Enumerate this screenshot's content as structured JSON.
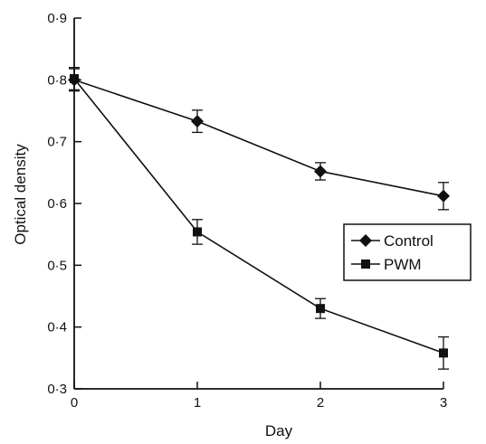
{
  "chart_data": {
    "type": "line",
    "xlabel": "Day",
    "ylabel": "Optical density",
    "xlim": [
      0,
      3
    ],
    "ylim": [
      0.3,
      0.9
    ],
    "x_ticks": [
      "0",
      "1",
      "2",
      "3"
    ],
    "y_ticks": [
      "0·3",
      "0·4",
      "0·5",
      "0·6",
      "0·7",
      "0·8",
      "0·9"
    ],
    "x": [
      0,
      1,
      2,
      3
    ],
    "series": [
      {
        "name": "Control",
        "marker": "diamond",
        "values": [
          0.8,
          0.733,
          0.652,
          0.612
        ],
        "error": [
          0.018,
          0.018,
          0.014,
          0.022
        ]
      },
      {
        "name": "PWM",
        "marker": "square",
        "values": [
          0.802,
          0.554,
          0.43,
          0.358
        ],
        "error": [
          0.018,
          0.02,
          0.016,
          0.026
        ]
      }
    ],
    "legend_position": "right",
    "grid": false
  }
}
